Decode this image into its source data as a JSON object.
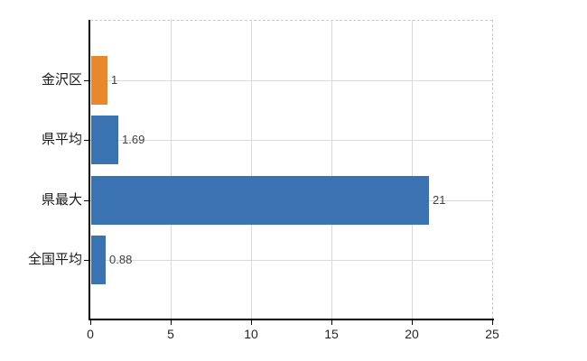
{
  "chart_data": {
    "type": "bar",
    "orientation": "horizontal",
    "title": "",
    "xlabel": "",
    "ylabel": "",
    "categories": [
      "金沢区",
      "県平均",
      "県最大",
      "全国平均"
    ],
    "values": [
      1,
      1.69,
      21,
      0.88
    ],
    "value_labels": [
      "1",
      "1.69",
      "21",
      "0.88"
    ],
    "bar_colors": [
      "#e8872e",
      "#3b73b2",
      "#3b73b2",
      "#3b73b2"
    ],
    "xlim": [
      0,
      25
    ],
    "xticks": [
      0,
      5,
      10,
      15,
      20,
      25
    ],
    "xtick_labels": [
      "0",
      "5",
      "10",
      "15",
      "20",
      "25"
    ],
    "grid": true,
    "legend": false
  },
  "colors": {
    "highlight_bar": "#e8872e",
    "default_bar": "#3b73b2",
    "gridline": "#d9d9d9",
    "dashed_border": "#c9c9c9",
    "axis": "#000000",
    "category_label_text": "#1a1a1a",
    "value_label_text": "#404040",
    "tick_label_text": "#262626",
    "background": "#ffffff"
  }
}
